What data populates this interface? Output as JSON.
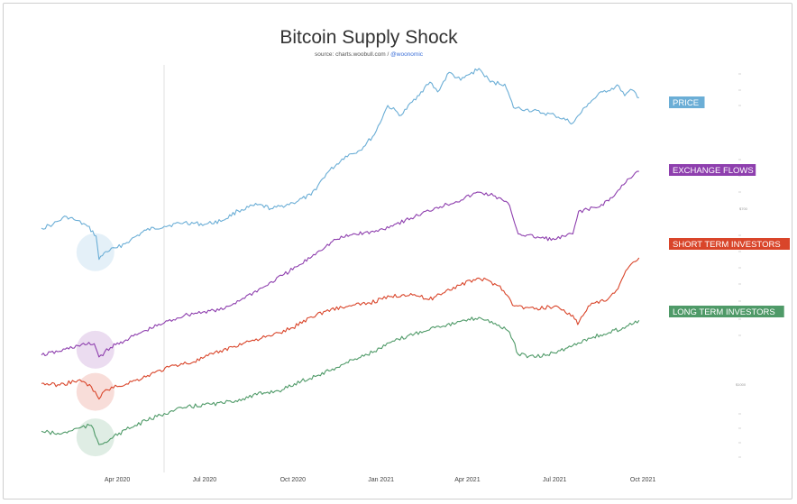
{
  "title": "Bitcoin Supply Shock",
  "source_prefix": "source: charts.woobull.com / ",
  "source_handle": "@woonomic",
  "colors": {
    "price": "#6baed6",
    "exchange": "#8e3fae",
    "short_term": "#d9452a",
    "long_term": "#4f9a68"
  },
  "chart_data": {
    "type": "line",
    "title": "Bitcoin Supply Shock",
    "x_range": [
      "2020-01-13",
      "2021-10-15"
    ],
    "x_ticks": [
      {
        "label": "Apr 2020",
        "date": "2020-04-01"
      },
      {
        "label": "Jul 2020",
        "date": "2020-07-01"
      },
      {
        "label": "Oct 2020",
        "date": "2020-10-01"
      },
      {
        "label": "Jan 2021",
        "date": "2021-01-01"
      },
      {
        "label": "Apr 2021",
        "date": "2021-04-01"
      },
      {
        "label": "Jul 2021",
        "date": "2021-07-01"
      },
      {
        "label": "Oct 2021",
        "date": "2021-10-01"
      }
    ],
    "grid": false,
    "vertical_marker_date": "2020-05-11",
    "legend": "right",
    "right_axis_labels": [
      "$700",
      "$1000"
    ],
    "series": [
      {
        "key": "price",
        "name": "PRICE",
        "points": [
          [
            "2020-01-13",
            0.18
          ],
          [
            "2020-01-25",
            0.2
          ],
          [
            "2020-02-08",
            0.24
          ],
          [
            "2020-02-18",
            0.22
          ],
          [
            "2020-03-01",
            0.19
          ],
          [
            "2020-03-10",
            0.14
          ],
          [
            "2020-03-13",
            0.02
          ],
          [
            "2020-03-20",
            0.06
          ],
          [
            "2020-04-01",
            0.08
          ],
          [
            "2020-04-15",
            0.12
          ],
          [
            "2020-05-01",
            0.17
          ],
          [
            "2020-05-20",
            0.19
          ],
          [
            "2020-06-10",
            0.21
          ],
          [
            "2020-07-01",
            0.2
          ],
          [
            "2020-07-20",
            0.22
          ],
          [
            "2020-08-05",
            0.27
          ],
          [
            "2020-08-25",
            0.3
          ],
          [
            "2020-09-10",
            0.28
          ],
          [
            "2020-10-01",
            0.31
          ],
          [
            "2020-10-20",
            0.35
          ],
          [
            "2020-11-05",
            0.46
          ],
          [
            "2020-11-25",
            0.55
          ],
          [
            "2020-12-10",
            0.58
          ],
          [
            "2020-12-25",
            0.66
          ],
          [
            "2021-01-08",
            0.81
          ],
          [
            "2021-01-22",
            0.76
          ],
          [
            "2021-02-08",
            0.86
          ],
          [
            "2021-02-21",
            0.93
          ],
          [
            "2021-03-01",
            0.88
          ],
          [
            "2021-03-13",
            0.98
          ],
          [
            "2021-03-25",
            0.94
          ],
          [
            "2021-04-13",
            1.0
          ],
          [
            "2021-04-25",
            0.93
          ],
          [
            "2021-05-10",
            0.92
          ],
          [
            "2021-05-19",
            0.8
          ],
          [
            "2021-06-01",
            0.79
          ],
          [
            "2021-06-20",
            0.77
          ],
          [
            "2021-07-01",
            0.76
          ],
          [
            "2021-07-20",
            0.72
          ],
          [
            "2021-08-05",
            0.82
          ],
          [
            "2021-08-20",
            0.88
          ],
          [
            "2021-09-06",
            0.91
          ],
          [
            "2021-09-12",
            0.86
          ],
          [
            "2021-09-20",
            0.89
          ],
          [
            "2021-09-27",
            0.85
          ]
        ]
      },
      {
        "key": "exchange",
        "name": "EXCHANGE FLOWS",
        "points": [
          [
            "2020-01-13",
            0.02
          ],
          [
            "2020-02-01",
            0.04
          ],
          [
            "2020-02-20",
            0.07
          ],
          [
            "2020-03-08",
            0.08
          ],
          [
            "2020-03-13",
            0.01
          ],
          [
            "2020-03-25",
            0.06
          ],
          [
            "2020-04-10",
            0.1
          ],
          [
            "2020-05-01",
            0.15
          ],
          [
            "2020-05-20",
            0.19
          ],
          [
            "2020-06-10",
            0.23
          ],
          [
            "2020-07-01",
            0.25
          ],
          [
            "2020-07-20",
            0.26
          ],
          [
            "2020-08-10",
            0.32
          ],
          [
            "2020-09-01",
            0.38
          ],
          [
            "2020-09-20",
            0.44
          ],
          [
            "2020-10-10",
            0.5
          ],
          [
            "2020-10-28",
            0.57
          ],
          [
            "2020-11-15",
            0.63
          ],
          [
            "2020-12-05",
            0.66
          ],
          [
            "2020-12-25",
            0.67
          ],
          [
            "2021-01-15",
            0.71
          ],
          [
            "2021-02-05",
            0.75
          ],
          [
            "2021-02-28",
            0.8
          ],
          [
            "2021-03-20",
            0.83
          ],
          [
            "2021-04-13",
            0.88
          ],
          [
            "2021-04-30",
            0.86
          ],
          [
            "2021-05-15",
            0.81
          ],
          [
            "2021-05-24",
            0.66
          ],
          [
            "2021-06-15",
            0.64
          ],
          [
            "2021-07-01",
            0.63
          ],
          [
            "2021-07-20",
            0.66
          ],
          [
            "2021-07-26",
            0.78
          ],
          [
            "2021-08-15",
            0.8
          ],
          [
            "2021-09-01",
            0.86
          ],
          [
            "2021-09-15",
            0.95
          ],
          [
            "2021-09-27",
            0.99
          ]
        ]
      },
      {
        "key": "short_term",
        "name": "SHORT TERM INVESTORS",
        "points": [
          [
            "2020-01-13",
            0.12
          ],
          [
            "2020-02-01",
            0.11
          ],
          [
            "2020-02-20",
            0.14
          ],
          [
            "2020-03-05",
            0.1
          ],
          [
            "2020-03-13",
            0.02
          ],
          [
            "2020-03-20",
            0.08
          ],
          [
            "2020-04-01",
            0.1
          ],
          [
            "2020-04-20",
            0.14
          ],
          [
            "2020-05-10",
            0.19
          ],
          [
            "2020-06-01",
            0.24
          ],
          [
            "2020-06-20",
            0.26
          ],
          [
            "2020-07-10",
            0.31
          ],
          [
            "2020-08-01",
            0.36
          ],
          [
            "2020-08-20",
            0.4
          ],
          [
            "2020-09-10",
            0.43
          ],
          [
            "2020-10-01",
            0.48
          ],
          [
            "2020-10-20",
            0.55
          ],
          [
            "2020-11-10",
            0.6
          ],
          [
            "2020-12-01",
            0.62
          ],
          [
            "2020-12-20",
            0.64
          ],
          [
            "2021-01-10",
            0.68
          ],
          [
            "2021-02-01",
            0.7
          ],
          [
            "2021-02-20",
            0.66
          ],
          [
            "2021-03-10",
            0.72
          ],
          [
            "2021-04-13",
            0.8
          ],
          [
            "2021-05-05",
            0.75
          ],
          [
            "2021-05-20",
            0.62
          ],
          [
            "2021-06-10",
            0.6
          ],
          [
            "2021-07-01",
            0.62
          ],
          [
            "2021-07-20",
            0.56
          ],
          [
            "2021-07-25",
            0.5
          ],
          [
            "2021-08-05",
            0.62
          ],
          [
            "2021-08-25",
            0.66
          ],
          [
            "2021-09-05",
            0.73
          ],
          [
            "2021-09-15",
            0.86
          ],
          [
            "2021-09-27",
            0.93
          ]
        ]
      },
      {
        "key": "long_term",
        "name": "LONG TERM INVESTORS",
        "points": [
          [
            "2020-01-13",
            0.12
          ],
          [
            "2020-02-01",
            0.1
          ],
          [
            "2020-02-20",
            0.14
          ],
          [
            "2020-03-05",
            0.16
          ],
          [
            "2020-03-13",
            0.03
          ],
          [
            "2020-03-25",
            0.07
          ],
          [
            "2020-04-10",
            0.13
          ],
          [
            "2020-05-01",
            0.19
          ],
          [
            "2020-05-20",
            0.24
          ],
          [
            "2020-06-10",
            0.28
          ],
          [
            "2020-07-01",
            0.3
          ],
          [
            "2020-07-20",
            0.31
          ],
          [
            "2020-08-10",
            0.34
          ],
          [
            "2020-09-01",
            0.38
          ],
          [
            "2020-09-20",
            0.4
          ],
          [
            "2020-10-10",
            0.46
          ],
          [
            "2020-10-28",
            0.5
          ],
          [
            "2020-11-15",
            0.55
          ],
          [
            "2020-12-05",
            0.61
          ],
          [
            "2020-12-25",
            0.66
          ],
          [
            "2021-01-15",
            0.73
          ],
          [
            "2021-02-05",
            0.78
          ],
          [
            "2021-02-28",
            0.83
          ],
          [
            "2021-03-20",
            0.85
          ],
          [
            "2021-04-13",
            0.89
          ],
          [
            "2021-04-30",
            0.85
          ],
          [
            "2021-05-15",
            0.79
          ],
          [
            "2021-05-24",
            0.64
          ],
          [
            "2021-06-10",
            0.62
          ],
          [
            "2021-07-01",
            0.65
          ],
          [
            "2021-07-20",
            0.7
          ],
          [
            "2021-08-05",
            0.75
          ],
          [
            "2021-08-25",
            0.78
          ],
          [
            "2021-09-10",
            0.82
          ],
          [
            "2021-09-27",
            0.87
          ]
        ]
      }
    ],
    "annotations": [
      "March 2020 crash highlighted with a circle on each series"
    ]
  }
}
